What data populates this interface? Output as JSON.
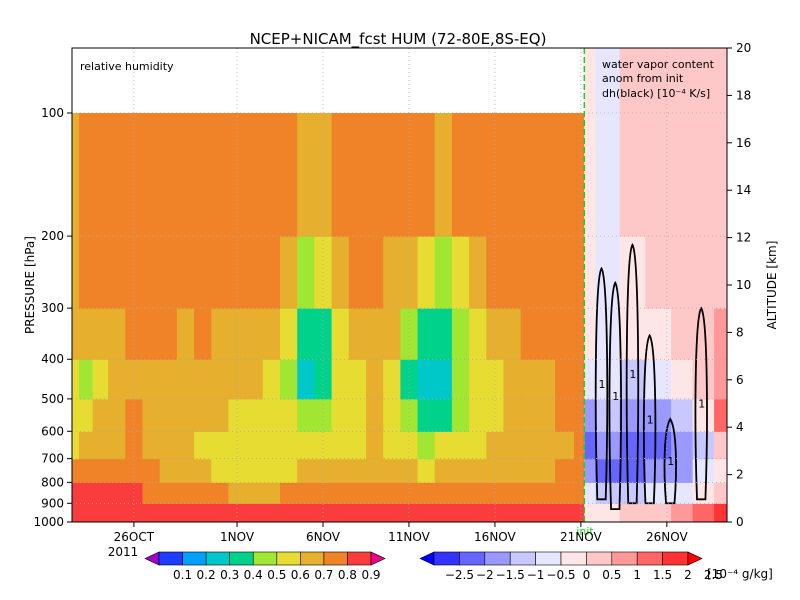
{
  "chart_data": {
    "type": "heatmap",
    "title": "NCEP+NICAM_fcst HUM (72-80E,8S-EQ)",
    "left_panel_label": "relative humidity",
    "right_panel_label": [
      "water vapor content",
      "anom from init",
      "dh(black) [10⁻⁴ K/s]"
    ],
    "ylabel": "PRESSURE [hPa]",
    "y2label": "ALTITUDE [km]",
    "init_label": "init",
    "year_label": "2011",
    "pressure_ticks": [
      100,
      200,
      300,
      400,
      500,
      600,
      700,
      800,
      900,
      1000
    ],
    "altitude_ticks": [
      0,
      2,
      4,
      6,
      8,
      10,
      12,
      14,
      16,
      18,
      20
    ],
    "date_ticks": [
      "26OCT",
      "1NOV",
      "6NOV",
      "11NOV",
      "16NOV",
      "21NOV",
      "26NOV"
    ],
    "date_tick_days": [
      -6,
      0,
      5,
      10,
      15,
      20,
      25
    ],
    "x_range_days": [
      -9.6,
      28.5
    ],
    "init_day": 20.2,
    "colorbar_rh": {
      "labels": [
        "0.1",
        "0.2",
        "0.3",
        "0.4",
        "0.5",
        "0.6",
        "0.7",
        "0.8",
        "0.9"
      ],
      "colors": [
        "#a000c8",
        "#1e3cff",
        "#00a0ff",
        "#00c8c8",
        "#00d28c",
        "#a0e632",
        "#e6dc32",
        "#e6af2d",
        "#f08228",
        "#fa3c3c",
        "#f00082"
      ]
    },
    "colorbar_anom": {
      "labels": [
        "−2.5",
        "−2",
        "−1.5",
        "−1",
        "−0.5",
        "0",
        "0.5",
        "1",
        "1.5",
        "2",
        "2.5"
      ],
      "unit": "[10⁻⁴ g/kg]",
      "colors": [
        "#0000ff",
        "#3333ff",
        "#6666ff",
        "#9999ff",
        "#c8c8ff",
        "#e6e6ff",
        "#ffe6e6",
        "#ffc8c8",
        "#ff9999",
        "#ff6666",
        "#ff3333",
        "#ff0000"
      ]
    },
    "rh_columns": [
      {
        "day": -9.6,
        "rh": [
          0.78,
          0.76,
          0.7,
          0.6,
          0.62,
          0.68,
          0.8,
          0.9,
          0.95
        ]
      },
      {
        "day": -8.8,
        "rh": [
          0.82,
          0.8,
          0.75,
          0.55,
          0.6,
          0.7,
          0.82,
          0.9,
          0.95
        ]
      },
      {
        "day": -8.0,
        "rh": [
          0.85,
          0.8,
          0.73,
          0.68,
          0.7,
          0.75,
          0.84,
          0.9,
          0.95
        ]
      },
      {
        "day": -7.0,
        "rh": [
          0.86,
          0.82,
          0.75,
          0.72,
          0.76,
          0.78,
          0.83,
          0.9,
          0.95
        ]
      },
      {
        "day": -6.0,
        "rh": [
          0.88,
          0.84,
          0.8,
          0.78,
          0.8,
          0.8,
          0.84,
          0.9,
          0.95
        ]
      },
      {
        "day": -5.0,
        "rh": [
          0.88,
          0.83,
          0.8,
          0.78,
          0.78,
          0.78,
          0.83,
          0.88,
          0.95
        ]
      },
      {
        "day": -4.0,
        "rh": [
          0.86,
          0.82,
          0.8,
          0.77,
          0.74,
          0.72,
          0.76,
          0.85,
          0.95
        ]
      },
      {
        "day": -3.0,
        "rh": [
          0.87,
          0.83,
          0.78,
          0.74,
          0.72,
          0.7,
          0.72,
          0.84,
          0.95
        ]
      },
      {
        "day": -2.0,
        "rh": [
          0.86,
          0.83,
          0.8,
          0.78,
          0.74,
          0.68,
          0.7,
          0.84,
          0.95
        ]
      },
      {
        "day": -1.0,
        "rh": [
          0.87,
          0.82,
          0.76,
          0.73,
          0.7,
          0.66,
          0.66,
          0.8,
          0.94
        ]
      },
      {
        "day": 0.0,
        "rh": [
          0.86,
          0.82,
          0.78,
          0.73,
          0.68,
          0.62,
          0.64,
          0.78,
          0.94
        ]
      },
      {
        "day": 1.0,
        "rh": [
          0.85,
          0.8,
          0.74,
          0.7,
          0.67,
          0.62,
          0.64,
          0.78,
          0.94
        ]
      },
      {
        "day": 2.0,
        "rh": [
          0.84,
          0.8,
          0.72,
          0.68,
          0.66,
          0.6,
          0.62,
          0.78,
          0.94
        ]
      },
      {
        "day": 3.0,
        "rh": [
          0.83,
          0.72,
          0.6,
          0.55,
          0.6,
          0.62,
          0.68,
          0.8,
          0.94
        ]
      },
      {
        "day": 4.0,
        "rh": [
          0.75,
          0.55,
          0.42,
          0.38,
          0.5,
          0.6,
          0.7,
          0.82,
          0.94
        ]
      },
      {
        "day": 5.0,
        "rh": [
          0.78,
          0.6,
          0.45,
          0.4,
          0.52,
          0.62,
          0.72,
          0.82,
          0.94
        ]
      },
      {
        "day": 6.0,
        "rh": [
          0.86,
          0.76,
          0.66,
          0.6,
          0.64,
          0.66,
          0.72,
          0.82,
          0.94
        ]
      },
      {
        "day": 7.0,
        "rh": [
          0.86,
          0.8,
          0.72,
          0.66,
          0.66,
          0.66,
          0.72,
          0.82,
          0.94
        ]
      },
      {
        "day": 8.0,
        "rh": [
          0.86,
          0.82,
          0.76,
          0.72,
          0.7,
          0.7,
          0.72,
          0.82,
          0.94
        ]
      },
      {
        "day": 9.0,
        "rh": [
          0.85,
          0.78,
          0.7,
          0.6,
          0.6,
          0.64,
          0.7,
          0.82,
          0.94
        ]
      },
      {
        "day": 10.0,
        "rh": [
          0.84,
          0.7,
          0.5,
          0.4,
          0.5,
          0.6,
          0.7,
          0.82,
          0.94
        ]
      },
      {
        "day": 11.0,
        "rh": [
          0.8,
          0.6,
          0.4,
          0.3,
          0.42,
          0.58,
          0.68,
          0.82,
          0.94
        ]
      },
      {
        "day": 12.0,
        "rh": [
          0.78,
          0.58,
          0.42,
          0.36,
          0.48,
          0.62,
          0.7,
          0.82,
          0.94
        ]
      },
      {
        "day": 13.0,
        "rh": [
          0.82,
          0.68,
          0.55,
          0.5,
          0.58,
          0.66,
          0.72,
          0.82,
          0.94
        ]
      },
      {
        "day": 14.0,
        "rh": [
          0.85,
          0.76,
          0.64,
          0.6,
          0.64,
          0.68,
          0.74,
          0.82,
          0.94
        ]
      },
      {
        "day": 15.0,
        "rh": [
          0.86,
          0.8,
          0.72,
          0.68,
          0.68,
          0.7,
          0.76,
          0.84,
          0.94
        ]
      },
      {
        "day": 16.0,
        "rh": [
          0.87,
          0.82,
          0.76,
          0.72,
          0.72,
          0.72,
          0.76,
          0.84,
          0.94
        ]
      },
      {
        "day": 17.0,
        "rh": [
          0.88,
          0.84,
          0.8,
          0.78,
          0.76,
          0.74,
          0.78,
          0.86,
          0.94
        ]
      },
      {
        "day": 18.0,
        "rh": [
          0.88,
          0.84,
          0.8,
          0.78,
          0.78,
          0.76,
          0.78,
          0.86,
          0.94
        ]
      },
      {
        "day": 19.0,
        "rh": [
          0.88,
          0.85,
          0.8,
          0.8,
          0.8,
          0.78,
          0.8,
          0.86,
          0.94
        ]
      },
      {
        "day": 20.2,
        "rh": [
          0.88,
          0.85,
          0.82,
          0.8,
          0.82,
          0.8,
          0.82,
          0.86,
          0.94
        ]
      }
    ],
    "anom_columns": [
      {
        "day": 20.2,
        "anom": [
          0.1,
          0.2,
          0.2,
          -0.4,
          -1.3,
          -1.9,
          -1.3,
          -0.3,
          0.3
        ]
      },
      {
        "day": 21.5,
        "anom": [
          -0.3,
          -0.5,
          -0.4,
          -0.3,
          -0.8,
          -1.5,
          -1.7,
          -0.8,
          0.3
        ]
      },
      {
        "day": 23.0,
        "anom": [
          0.6,
          0.4,
          0.3,
          -0.6,
          -1.1,
          -1.8,
          -1.6,
          -0.6,
          0.6
        ]
      },
      {
        "day": 24.5,
        "anom": [
          0.7,
          0.5,
          0.4,
          -0.3,
          -1.4,
          -1.9,
          -1.3,
          -0.4,
          0.8
        ]
      },
      {
        "day": 26.0,
        "anom": [
          0.8,
          0.7,
          0.6,
          0.3,
          -0.8,
          -1.4,
          -1.2,
          -0.2,
          1.2
        ]
      },
      {
        "day": 27.0,
        "anom": [
          0.7,
          0.8,
          0.9,
          0.7,
          0.3,
          -0.7,
          -0.5,
          0.2,
          1.6
        ]
      },
      {
        "day": 28.5,
        "anom": [
          0.6,
          0.8,
          1.0,
          1.2,
          1.8,
          0.8,
          0.2,
          0.6,
          2.0
        ]
      }
    ],
    "dh_contour_label": "1",
    "dh_plumes": [
      {
        "day": 21.2,
        "p_top": 240,
        "p_bot": 880
      },
      {
        "day": 22.0,
        "p_top": 260,
        "p_bot": 930
      },
      {
        "day": 23.0,
        "p_top": 210,
        "p_bot": 900
      },
      {
        "day": 24.0,
        "p_top": 350,
        "p_bot": 900
      },
      {
        "day": 25.2,
        "p_top": 560,
        "p_bot": 900
      },
      {
        "day": 27.0,
        "p_top": 300,
        "p_bot": 880
      }
    ]
  }
}
